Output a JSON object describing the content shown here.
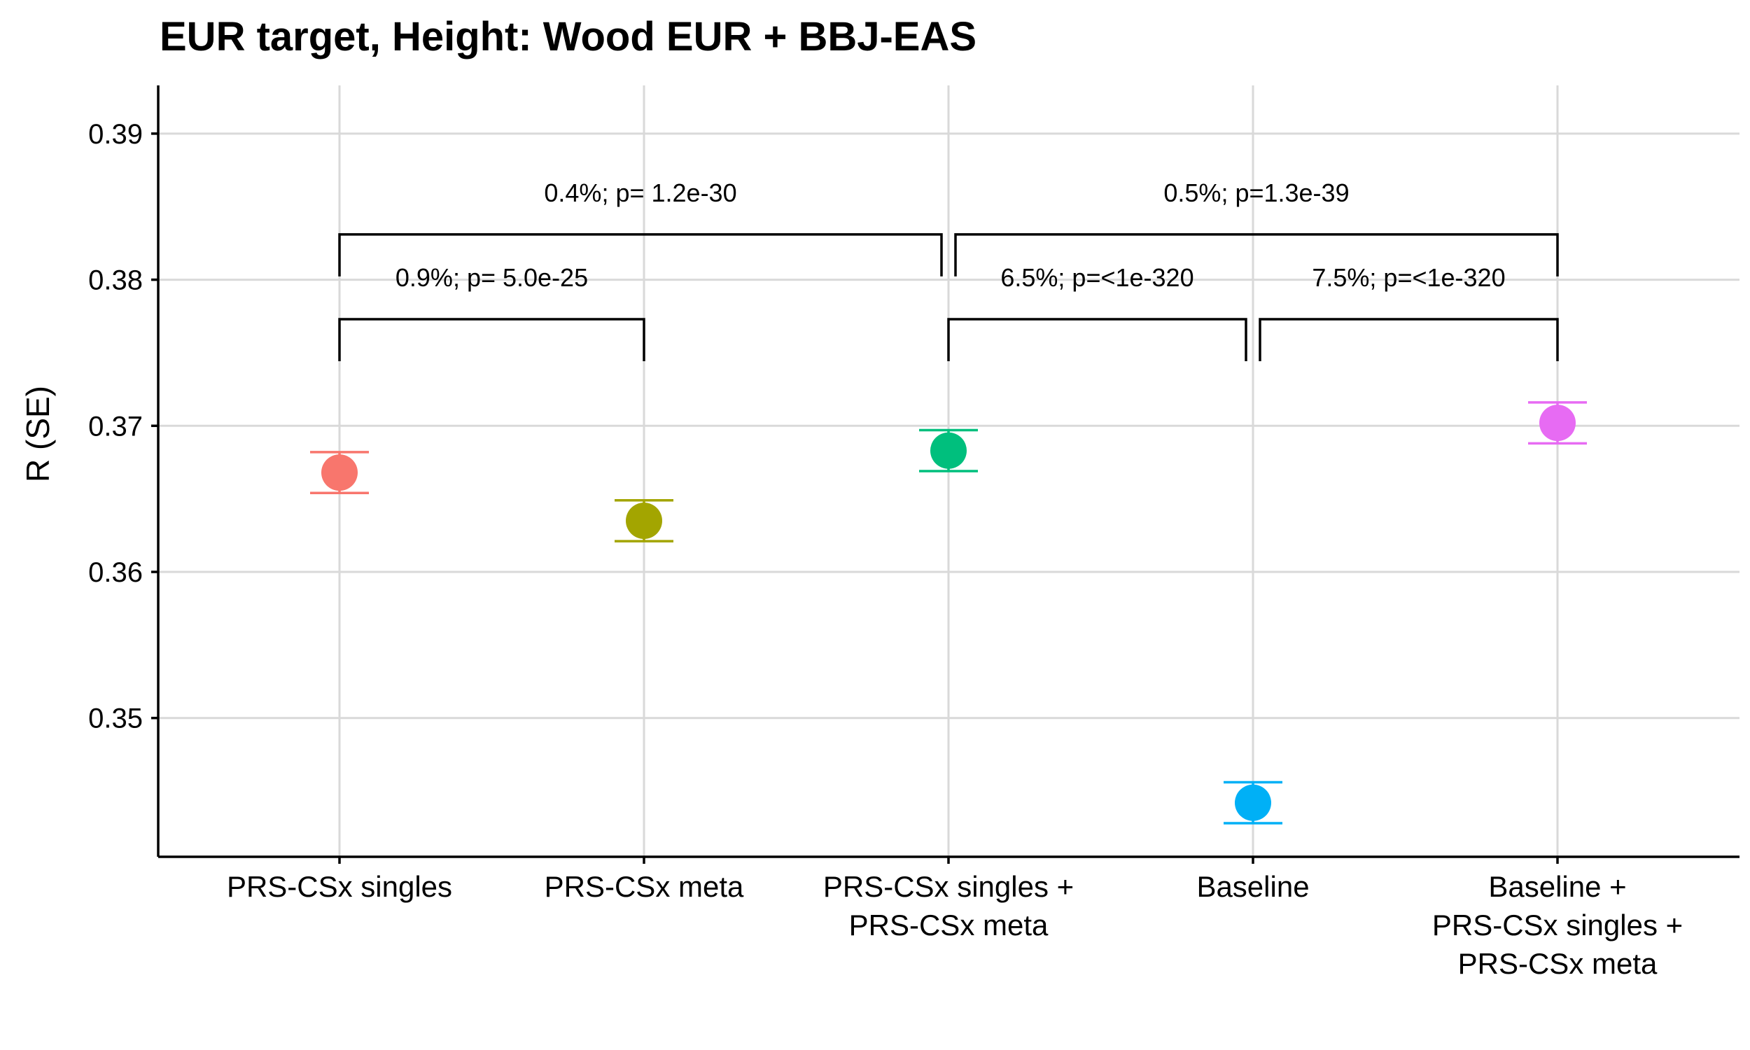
{
  "chart_data": {
    "type": "scatter",
    "title": "EUR target, Height: Wood EUR + BBJ-EAS",
    "ylabel": "R (SE)",
    "xlabel": "",
    "ylim": [
      0.3405,
      0.3933
    ],
    "yticks": [
      0.35,
      0.36,
      0.37,
      0.38,
      0.39
    ],
    "ytick_labels": [
      "0.35",
      "0.36",
      "0.37",
      "0.38",
      "0.39"
    ],
    "grid": true,
    "legend": "none",
    "points": [
      {
        "category": [
          "PRS-CSx singles"
        ],
        "value": 0.3668,
        "se": 0.0014,
        "color": "#F8766D"
      },
      {
        "category": [
          "PRS-CSx meta"
        ],
        "value": 0.3635,
        "se": 0.0014,
        "color": "#A3A500"
      },
      {
        "category": [
          "PRS-CSx singles +",
          "PRS-CSx meta"
        ],
        "value": 0.3683,
        "se": 0.0014,
        "color": "#00BF7D"
      },
      {
        "category": [
          "Baseline"
        ],
        "value": 0.3442,
        "se": 0.0014,
        "color": "#00B0F6"
      },
      {
        "category": [
          "Baseline +",
          "PRS-CSx singles +",
          "PRS-CSx meta"
        ],
        "value": 0.3702,
        "se": 0.0014,
        "color": "#E76BF3"
      }
    ],
    "comparisons": [
      {
        "from": 0,
        "to": 1,
        "label": "0.9%; p= 5.0e-25",
        "y": 0.3773
      },
      {
        "from": 0,
        "to": 2,
        "label": "0.4%; p= 1.2e-30",
        "y": 0.3831
      },
      {
        "from": 2,
        "to": 3,
        "label": "6.5%; p=<1e-320",
        "y": 0.3773
      },
      {
        "from": 2,
        "to": 4,
        "label": "0.5%; p=1.3e-39",
        "y": 0.3831
      },
      {
        "from": 3,
        "to": 4,
        "label": "7.5%; p=<1e-320",
        "y": 0.3773
      }
    ]
  }
}
